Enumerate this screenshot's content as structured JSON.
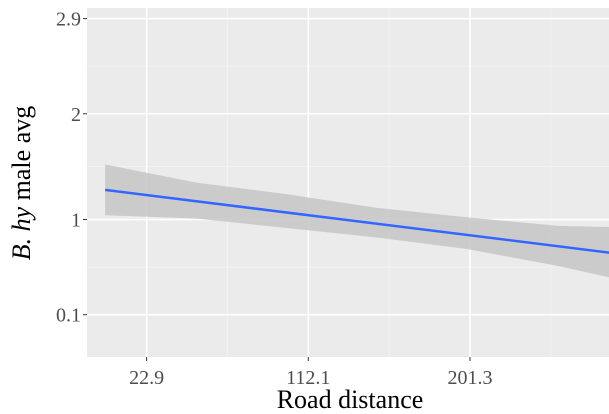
{
  "chart_data": {
    "type": "line",
    "title": "",
    "xlabel": "Road distance",
    "ylabel_parts": [
      {
        "text": "B. hy",
        "italic": true
      },
      {
        "text": " male avg",
        "italic": false
      }
    ],
    "x_ticks": [
      {
        "value": 22.9,
        "label": "22.9"
      },
      {
        "value": 112.1,
        "label": "112.1"
      },
      {
        "value": 201.3,
        "label": "201.3"
      }
    ],
    "y_ticks": [
      {
        "value": 0.1,
        "label": "0.1"
      },
      {
        "value": 1,
        "label": "1"
      },
      {
        "value": 2,
        "label": "2"
      },
      {
        "value": 2.9,
        "label": "2.9"
      }
    ],
    "xlim": [
      -10,
      278
    ],
    "ylim": [
      -0.3,
      3.0
    ],
    "grid": true,
    "series": [
      {
        "fit": {
          "x": [
            0,
            300
          ],
          "y": [
            1.28,
            0.64
          ]
        },
        "ci_band": {
          "x": [
            0,
            50,
            100,
            150,
            200,
            250,
            300
          ],
          "upper": [
            1.52,
            1.35,
            1.24,
            1.11,
            1.02,
            0.94,
            0.92
          ],
          "lower": [
            1.04,
            1.01,
            0.92,
            0.83,
            0.72,
            0.56,
            0.37
          ]
        }
      }
    ],
    "colors": {
      "panel": "#ebebeb",
      "grid_major": "#ffffff",
      "line": "#3366ff",
      "band": "#c8c8c8"
    }
  }
}
